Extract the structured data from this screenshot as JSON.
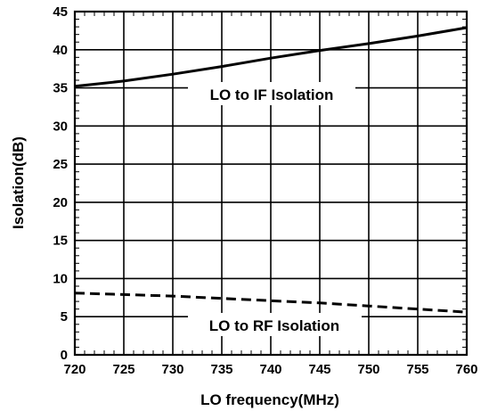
{
  "chart_data": {
    "type": "line",
    "title": "",
    "xlabel": "LO frequency(MHz)",
    "ylabel": "Isolation(dB)",
    "xlim": [
      720,
      760
    ],
    "ylim": [
      0,
      45
    ],
    "x_ticks": [
      720,
      725,
      730,
      735,
      740,
      745,
      750,
      755,
      760
    ],
    "y_ticks": [
      0,
      5,
      10,
      15,
      20,
      25,
      30,
      35,
      40,
      45
    ],
    "grid": true,
    "legend": "none",
    "series": [
      {
        "label_text": "LO to IF Isolation",
        "style": "solid",
        "color": "#000000",
        "x": [
          720,
          725,
          730,
          735,
          740,
          745,
          750,
          755,
          760
        ],
        "values": [
          35.2,
          35.9,
          36.8,
          37.8,
          38.9,
          39.9,
          40.8,
          41.8,
          42.9
        ]
      },
      {
        "label_text": "LO to RF Isolation",
        "style": "dashed",
        "color": "#000000",
        "x": [
          720,
          725,
          730,
          735,
          740,
          745,
          750,
          755,
          760
        ],
        "values": [
          8.1,
          7.9,
          7.7,
          7.4,
          7.1,
          6.8,
          6.4,
          6.0,
          5.6
        ]
      }
    ],
    "annotations": [
      "LO to IF Isolation",
      "LO to RF Isolation"
    ]
  }
}
